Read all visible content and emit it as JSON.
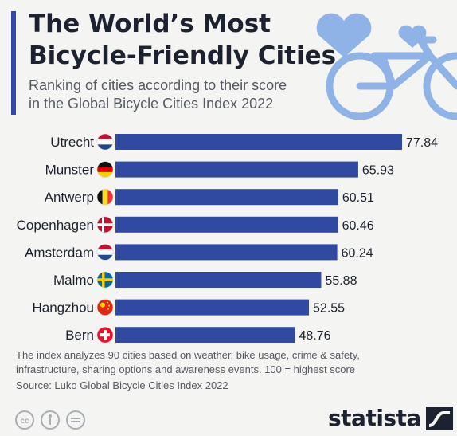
{
  "header": {
    "title_line1": "The World’s Most",
    "title_line2": "Bicycle-Friendly Cities",
    "subtitle_line1": "Ranking of cities according to their score",
    "subtitle_line2": "in the Global Bicycle Cities Index 2022"
  },
  "decoration": {
    "icons": [
      "heart-icon",
      "heart-icon",
      "bicycle-icon"
    ],
    "color": "#8fb3e6"
  },
  "chart_data": {
    "type": "bar",
    "orientation": "horizontal",
    "title": "The World’s Most Bicycle-Friendly Cities",
    "subtitle": "Ranking of cities according to their score in the Global Bicycle Cities Index 2022",
    "categories": [
      "Utrecht",
      "Munster",
      "Antwerp",
      "Copenhagen",
      "Amsterdam",
      "Malmo",
      "Hangzhou",
      "Bern"
    ],
    "flags": [
      "netherlands-flag-icon",
      "germany-flag-icon",
      "belgium-flag-icon",
      "denmark-flag-icon",
      "netherlands-flag-icon",
      "sweden-flag-icon",
      "china-flag-icon",
      "switzerland-flag-icon"
    ],
    "values": [
      77.84,
      65.93,
      60.51,
      60.46,
      60.24,
      55.88,
      52.55,
      48.76
    ],
    "value_labels": [
      "77.84",
      "65.93",
      "60.51",
      "60.46",
      "60.24",
      "55.88",
      "52.55",
      "48.76"
    ],
    "xlim": [
      0,
      77.84
    ],
    "grid": false,
    "legend": "none",
    "bar_color": "#2f4aa0"
  },
  "footer": {
    "note_line1": "The index analyzes 90 cities based on weather, bike usage, crime & safety,",
    "note_line2": "infrastructure, sharing options and awareness events. 100 = highest score",
    "source": "Source: Luko Global Bicycle Cities Index 2022",
    "licence_icons": [
      "creative-commons-icon",
      "attribution-icon",
      "no-derivatives-icon"
    ],
    "brand": "statista",
    "brand_icon": "statista-logo-icon"
  }
}
